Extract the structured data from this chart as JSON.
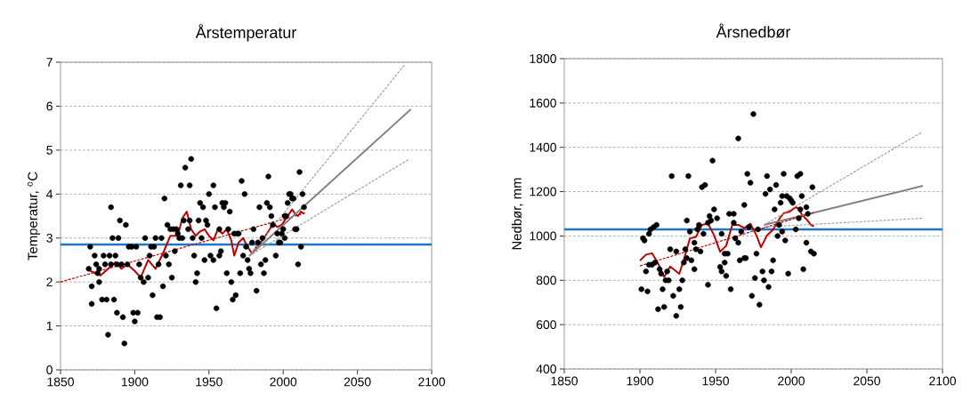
{
  "chart_data": [
    {
      "type": "scatter",
      "title": "Årstemperatur",
      "ylabel": "Temperatur, $^{o}$C",
      "xlim": [
        1850,
        2100
      ],
      "ylim": [
        0,
        7
      ],
      "xticks": [
        1850,
        1900,
        1950,
        2000,
        2050,
        2100
      ],
      "yticks": [
        0,
        1,
        2,
        3,
        4,
        5,
        6,
        7
      ],
      "grid": "y",
      "ref_lines": [
        {
          "axis": "y",
          "value": 2.85,
          "color": "#1f77c4"
        }
      ],
      "series": [
        {
          "type": "scatter",
          "color": "#000000",
          "marker": "circle",
          "x": [
            1870,
            1873,
            1874,
            1869,
            1876,
            1875,
            1871,
            1871,
            1876,
            1879,
            1880,
            1883,
            1887,
            1884,
            1888,
            1884,
            1885,
            1889,
            1890,
            1894,
            1891,
            1895,
            1878,
            1881,
            1886,
            1888,
            1892,
            1882,
            1893,
            1896,
            1898,
            1901,
            1899,
            1902,
            1900,
            1903,
            1904,
            1906,
            1909,
            1907,
            1910,
            1911,
            1913,
            1914,
            1918,
            1916,
            1912,
            1915,
            1917,
            1919,
            1920,
            1921,
            1923,
            1922,
            1924,
            1926,
            1928,
            1925,
            1927,
            1929,
            1930,
            1932,
            1931,
            1934,
            1938,
            1937,
            1933,
            1936,
            1937,
            1939,
            1940,
            1942,
            1941,
            1943,
            1944,
            1946,
            1945,
            1947,
            1948,
            1949,
            1950,
            1951,
            1953,
            1953,
            1954,
            1955,
            1957,
            1957,
            1958,
            1959,
            1961,
            1960,
            1962,
            1963,
            1964,
            1965,
            1967,
            1968,
            1969,
            1966,
            1970,
            1971,
            1972,
            1973,
            1974,
            1975,
            1976,
            1977,
            1978,
            1979,
            1980,
            1982,
            1983,
            1984,
            1985,
            1986,
            1987,
            1988,
            1989,
            1990,
            1991,
            1992,
            1993,
            1995,
            1996,
            1997,
            1998,
            1999,
            2000,
            2001,
            2002,
            2001,
            2003,
            2004,
            2005,
            2006,
            2007,
            2008,
            2009,
            2010,
            2011,
            2012,
            2013,
            2014
          ],
          "values": [
            2.8,
            2.6,
            2.4,
            2.3,
            2.3,
            2.2,
            1.9,
            1.5,
            2.0,
            2.6,
            2.4,
            2.6,
            2.6,
            2.4,
            2.4,
            3.7,
            3.0,
            3.0,
            3.4,
            3.3,
            2.4,
            2.4,
            1.6,
            1.6,
            1.6,
            1.3,
            1.2,
            0.8,
            0.6,
            2.8,
            2.8,
            2.8,
            1.3,
            1.3,
            1.1,
            2.4,
            2.1,
            2.0,
            2.1,
            3.0,
            2.6,
            2.8,
            2.8,
            3.0,
            3.0,
            2.4,
            1.7,
            1.2,
            1.2,
            1.9,
            3.9,
            2.6,
            2.4,
            3.3,
            3.2,
            3.2,
            3.2,
            2.1,
            2.7,
            3.1,
            3.0,
            3.0,
            4.2,
            4.6,
            4.8,
            4.2,
            3.4,
            3.2,
            3.4,
            3.0,
            2.6,
            2.2,
            2.0,
            3.4,
            3.8,
            3.7,
            3.0,
            2.5,
            3.4,
            3.3,
            4.0,
            2.6,
            2.5,
            4.2,
            3.7,
            1.4,
            2.6,
            3.2,
            2.7,
            3.8,
            3.8,
            3.7,
            2.2,
            3.2,
            3.6,
            2.0,
            3.1,
            1.7,
            3.1,
            1.6,
            3.1,
            2.2,
            4.3,
            2.6,
            4.0,
            2.8,
            2.5,
            2.3,
            2.2,
            2.9,
            3.2,
            1.8,
            2.9,
            3.7,
            2.4,
            3.0,
            2.2,
            2.5,
            3.8,
            4.4,
            3.7,
            3.5,
            3.3,
            2.6,
            3.1,
            2.9,
            2.9,
            3.1,
            3.2,
            3.5,
            3.5,
            3.0,
            3.8,
            4.0,
            4.0,
            3.9,
            3.9,
            3.2,
            3.2,
            2.4,
            4.5,
            2.8,
            4.0,
            3.7
          ]
        },
        {
          "type": "line",
          "color": "#c00000",
          "line_style": "solid",
          "marker": "none",
          "x": [
            1870,
            1877,
            1882,
            1887,
            1891,
            1895,
            1900,
            1904,
            1909,
            1914,
            1919,
            1924,
            1929,
            1932,
            1935,
            1938,
            1941,
            1944,
            1947,
            1950,
            1953,
            1956,
            1959,
            1962,
            1965,
            1967,
            1970,
            1973,
            1976,
            1979,
            1982,
            1985,
            1988,
            1991,
            1993,
            1996,
            1999,
            2002,
            2004,
            2006,
            2008,
            2010,
            2012,
            2014
          ],
          "values": [
            2.25,
            2.15,
            2.3,
            2.45,
            2.3,
            2.4,
            2.25,
            2.1,
            2.5,
            2.3,
            2.65,
            3.05,
            3.05,
            3.45,
            3.6,
            3.2,
            3.05,
            3.15,
            3.2,
            3.05,
            2.95,
            3.2,
            3.1,
            3.2,
            2.95,
            2.6,
            2.9,
            3.0,
            2.8,
            2.65,
            2.8,
            2.9,
            3.05,
            3.2,
            3.35,
            3.25,
            3.3,
            3.45,
            3.55,
            3.65,
            3.55,
            3.5,
            3.6,
            3.55
          ]
        },
        {
          "type": "line",
          "color": "#c00000",
          "line_style": "dashed",
          "marker": "none",
          "x": [
            1850,
            2015
          ],
          "values": [
            2.0,
            3.57
          ]
        },
        {
          "type": "line",
          "color": "#808080",
          "line_style": "solid",
          "marker": "none",
          "x": [
            1977,
            2086
          ],
          "values": [
            2.59,
            5.93
          ]
        },
        {
          "type": "line",
          "color": "#a0a0a0",
          "line_style": "dashed",
          "marker": "none",
          "x": [
            1977,
            2082
          ],
          "values": [
            2.59,
            6.95
          ]
        },
        {
          "type": "line",
          "color": "#a0a0a0",
          "line_style": "dashed",
          "marker": "none",
          "x": [
            1977,
            2085
          ],
          "values": [
            2.59,
            4.8
          ]
        }
      ]
    },
    {
      "type": "scatter",
      "title": "Årsnedbør",
      "ylabel": "Nedbør, mm",
      "xlim": [
        1850,
        2100
      ],
      "ylim": [
        400,
        1800
      ],
      "xticks": [
        1850,
        1900,
        1950,
        2000,
        2050,
        2100
      ],
      "yticks": [
        400,
        600,
        800,
        1000,
        1200,
        1400,
        1600,
        1800
      ],
      "grid": "y",
      "ref_lines": [
        {
          "axis": "y",
          "value": 1030,
          "color": "#1f77c4"
        }
      ],
      "series": [
        {
          "type": "scatter",
          "color": "#000000",
          "marker": "circle",
          "x": [
            1901,
            1905,
            1902,
            1903,
            1906,
            1907,
            1909,
            1911,
            1904,
            1906,
            1908,
            1910,
            1913,
            1914,
            1912,
            1916,
            1915,
            1917,
            1919,
            1918,
            1920,
            1921,
            1922,
            1924,
            1924,
            1926,
            1927,
            1928,
            1929,
            1930,
            1931,
            1931,
            1932,
            1933,
            1934,
            1936,
            1936,
            1937,
            1938,
            1939,
            1940,
            1941,
            1943,
            1942,
            1945,
            1945,
            1946,
            1947,
            1948,
            1949,
            1951,
            1954,
            1953,
            1954,
            1956,
            1956,
            1957,
            1958,
            1959,
            1960,
            1962,
            1962,
            1963,
            1965,
            1965,
            1966,
            1967,
            1969,
            1969,
            1970,
            1971,
            1972,
            1973,
            1974,
            1975,
            1976,
            1977,
            1978,
            1979,
            1981,
            1982,
            1983,
            1984,
            1985,
            1986,
            1987,
            1988,
            1989,
            1990,
            1991,
            1992,
            1993,
            1994,
            1994,
            1995,
            1996,
            1997,
            1998,
            1999,
            2000,
            2001,
            2003,
            2004,
            2005,
            2006,
            2006,
            2007,
            2008,
            2010,
            2010,
            2011,
            2013,
            2014,
            2015
          ],
          "values": [
            760,
            750,
            990,
            980,
            1010,
            1030,
            1040,
            1050,
            840,
            870,
            870,
            880,
            850,
            830,
            670,
            680,
            760,
            800,
            800,
            840,
            940,
            1270,
            730,
            640,
            930,
            760,
            680,
            800,
            880,
            940,
            900,
            1070,
            1270,
            1020,
            890,
            850,
            970,
            940,
            1030,
            1050,
            930,
            1220,
            1230,
            1010,
            780,
            1060,
            1090,
            1070,
            1340,
            1120,
            1080,
            1010,
            860,
            840,
            920,
            880,
            820,
            920,
            1100,
            760,
            1060,
            1100,
            990,
            1440,
            970,
            890,
            1020,
            1140,
            900,
            900,
            1280,
            1040,
            1240,
            730,
            1550,
            810,
            920,
            1030,
            690,
            840,
            800,
            1190,
            1270,
            770,
            1210,
            840,
            890,
            1120,
            1230,
            1000,
            1050,
            1150,
            1020,
            1180,
            1280,
            980,
            1180,
            830,
            1170,
            1160,
            1150,
            1030,
            1270,
            1080,
            1280,
            1120,
            1180,
            850,
            970,
            1130,
            1100,
            930,
            1220,
            920
          ]
        },
        {
          "type": "line",
          "color": "#c00000",
          "line_style": "solid",
          "marker": "none",
          "x": [
            1900,
            1904,
            1908,
            1912,
            1916,
            1920,
            1926,
            1930,
            1933,
            1937,
            1941,
            1945,
            1949,
            1953,
            1957,
            1961,
            1965,
            1969,
            1973,
            1977,
            1980,
            1984,
            1988,
            1992,
            1995,
            1999,
            2003,
            2005,
            2007,
            2010,
            2013,
            2015
          ],
          "values": [
            889,
            916,
            922,
            876,
            815,
            862,
            829,
            916,
            989,
            996,
            1050,
            1056,
            1003,
            929,
            956,
            1050,
            1050,
            1036,
            1056,
            1003,
            949,
            1003,
            1029,
            1076,
            1103,
            1110,
            1130,
            1123,
            1096,
            1076,
            1050,
            1043
          ]
        },
        {
          "type": "line",
          "color": "#808080",
          "line_style": "solid",
          "marker": "none",
          "x": [
            1982,
            2087
          ],
          "values": [
            1050,
            1226
          ]
        },
        {
          "type": "line",
          "color": "#a0a0a0",
          "line_style": "dashed",
          "marker": "none",
          "x": [
            1982,
            2086
          ],
          "values": [
            1050,
            1467
          ]
        },
        {
          "type": "line",
          "color": "#a0a0a0",
          "line_style": "dashed",
          "marker": "none",
          "x": [
            1982,
            2087
          ],
          "values": [
            1040,
            1080
          ]
        },
        {
          "type": "line",
          "color": "#c00000",
          "line_style": "dashed",
          "marker": "none",
          "x": [
            1900,
            2015
          ],
          "values": [
            865,
            1106
          ]
        }
      ]
    }
  ]
}
